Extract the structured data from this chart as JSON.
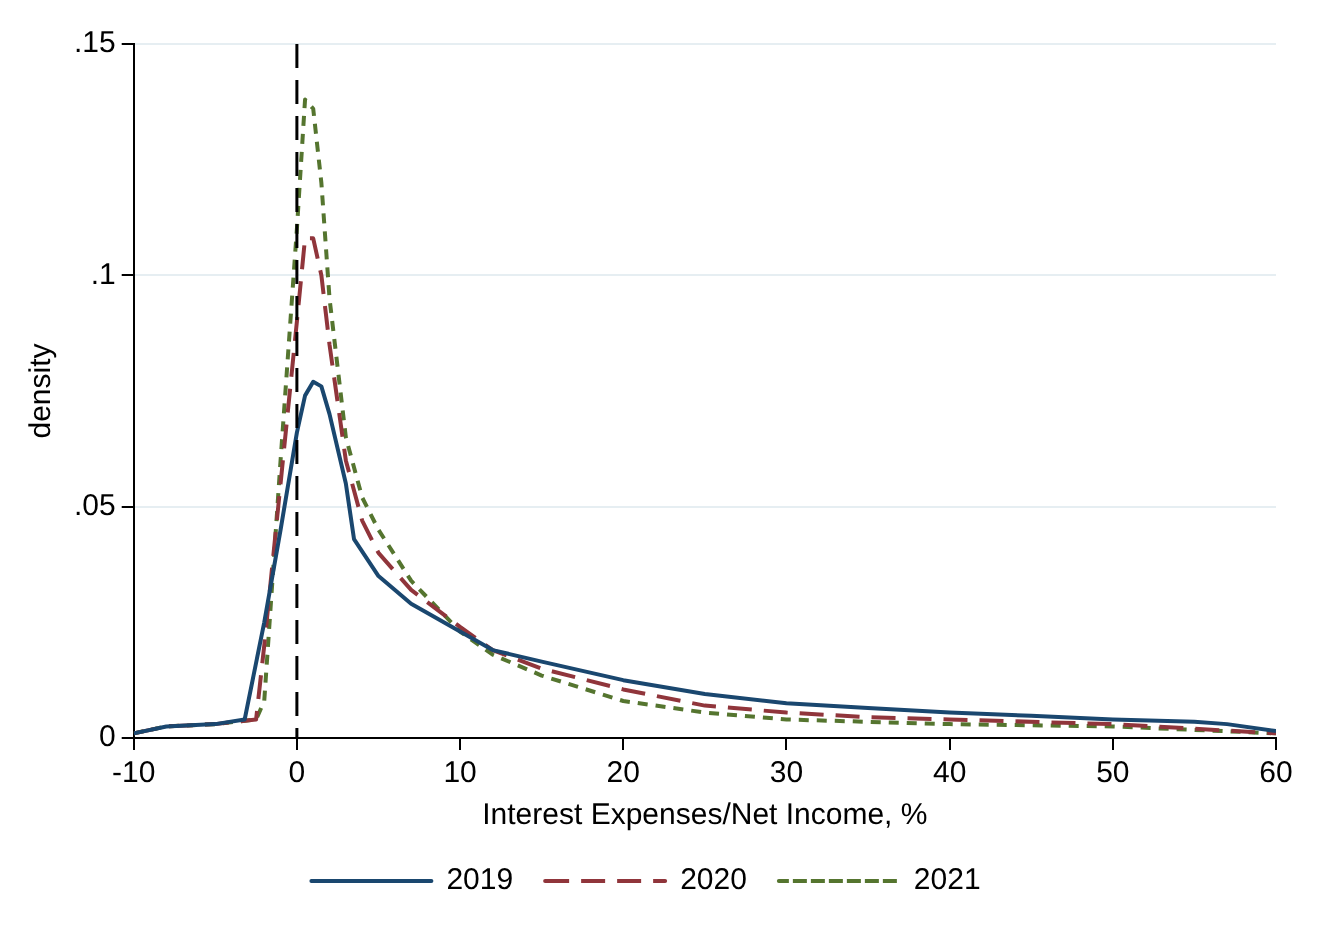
{
  "chart_data": {
    "type": "line",
    "xlabel": "Interest Expenses/Net Income, %",
    "ylabel": "density",
    "xlim": [
      -10,
      60
    ],
    "xticks": [
      -10,
      0,
      10,
      20,
      30,
      40,
      50,
      60
    ],
    "ylim": [
      0,
      0.15
    ],
    "yticks": [
      {
        "value": 0,
        "label": "0"
      },
      {
        "value": 0.05,
        "label": ".05"
      },
      {
        "value": 0.1,
        "label": ".1"
      },
      {
        "value": 0.15,
        "label": ".15"
      }
    ],
    "grid": "y",
    "legend": "bottom",
    "marker": "none",
    "ref_lines": [
      {
        "axis": "x",
        "value": 0,
        "color": "#000000",
        "line_style": "dashed"
      }
    ],
    "series": [
      {
        "name": "2019",
        "color": "#1a476f",
        "line_style": "solid",
        "x": [
          -10,
          -8,
          -5,
          -3.2,
          -2,
          -1,
          0,
          0.5,
          1,
          1.5,
          2,
          3,
          3.5,
          5,
          7,
          10,
          12,
          15,
          20,
          25,
          30,
          35,
          40,
          45,
          50,
          55,
          57,
          60
        ],
        "values": [
          0.001,
          0.0025,
          0.003,
          0.004,
          0.025,
          0.045,
          0.066,
          0.074,
          0.077,
          0.076,
          0.07,
          0.055,
          0.043,
          0.035,
          0.029,
          0.023,
          0.019,
          0.0165,
          0.0125,
          0.0095,
          0.0075,
          0.0065,
          0.0055,
          0.0048,
          0.004,
          0.0035,
          0.003,
          0.0015
        ]
      },
      {
        "name": "2020",
        "color": "#90353b",
        "line_style": "dashed",
        "x": [
          -10,
          -8,
          -5,
          -2.5,
          -2,
          -1,
          0,
          0.5,
          1,
          1.5,
          2,
          3,
          4,
          5,
          7,
          10,
          12,
          15,
          20,
          25,
          30,
          35,
          40,
          50,
          60
        ],
        "values": [
          0.001,
          0.0025,
          0.003,
          0.004,
          0.02,
          0.055,
          0.09,
          0.108,
          0.108,
          0.1,
          0.085,
          0.06,
          0.047,
          0.04,
          0.032,
          0.024,
          0.019,
          0.015,
          0.0105,
          0.007,
          0.0055,
          0.0045,
          0.004,
          0.003,
          0.001
        ]
      },
      {
        "name": "2021",
        "color": "#55752f",
        "line_style": "dotted",
        "x": [
          -10,
          -8,
          -5,
          -2.5,
          -2,
          -1,
          0,
          0.5,
          1,
          1.5,
          2,
          3,
          4,
          5,
          7,
          10,
          12,
          15,
          20,
          25,
          30,
          40,
          50,
          60
        ],
        "values": [
          0.001,
          0.0025,
          0.003,
          0.004,
          0.008,
          0.06,
          0.11,
          0.138,
          0.136,
          0.12,
          0.095,
          0.065,
          0.052,
          0.045,
          0.034,
          0.023,
          0.018,
          0.0135,
          0.008,
          0.0055,
          0.004,
          0.003,
          0.0025,
          0.001
        ]
      }
    ]
  }
}
